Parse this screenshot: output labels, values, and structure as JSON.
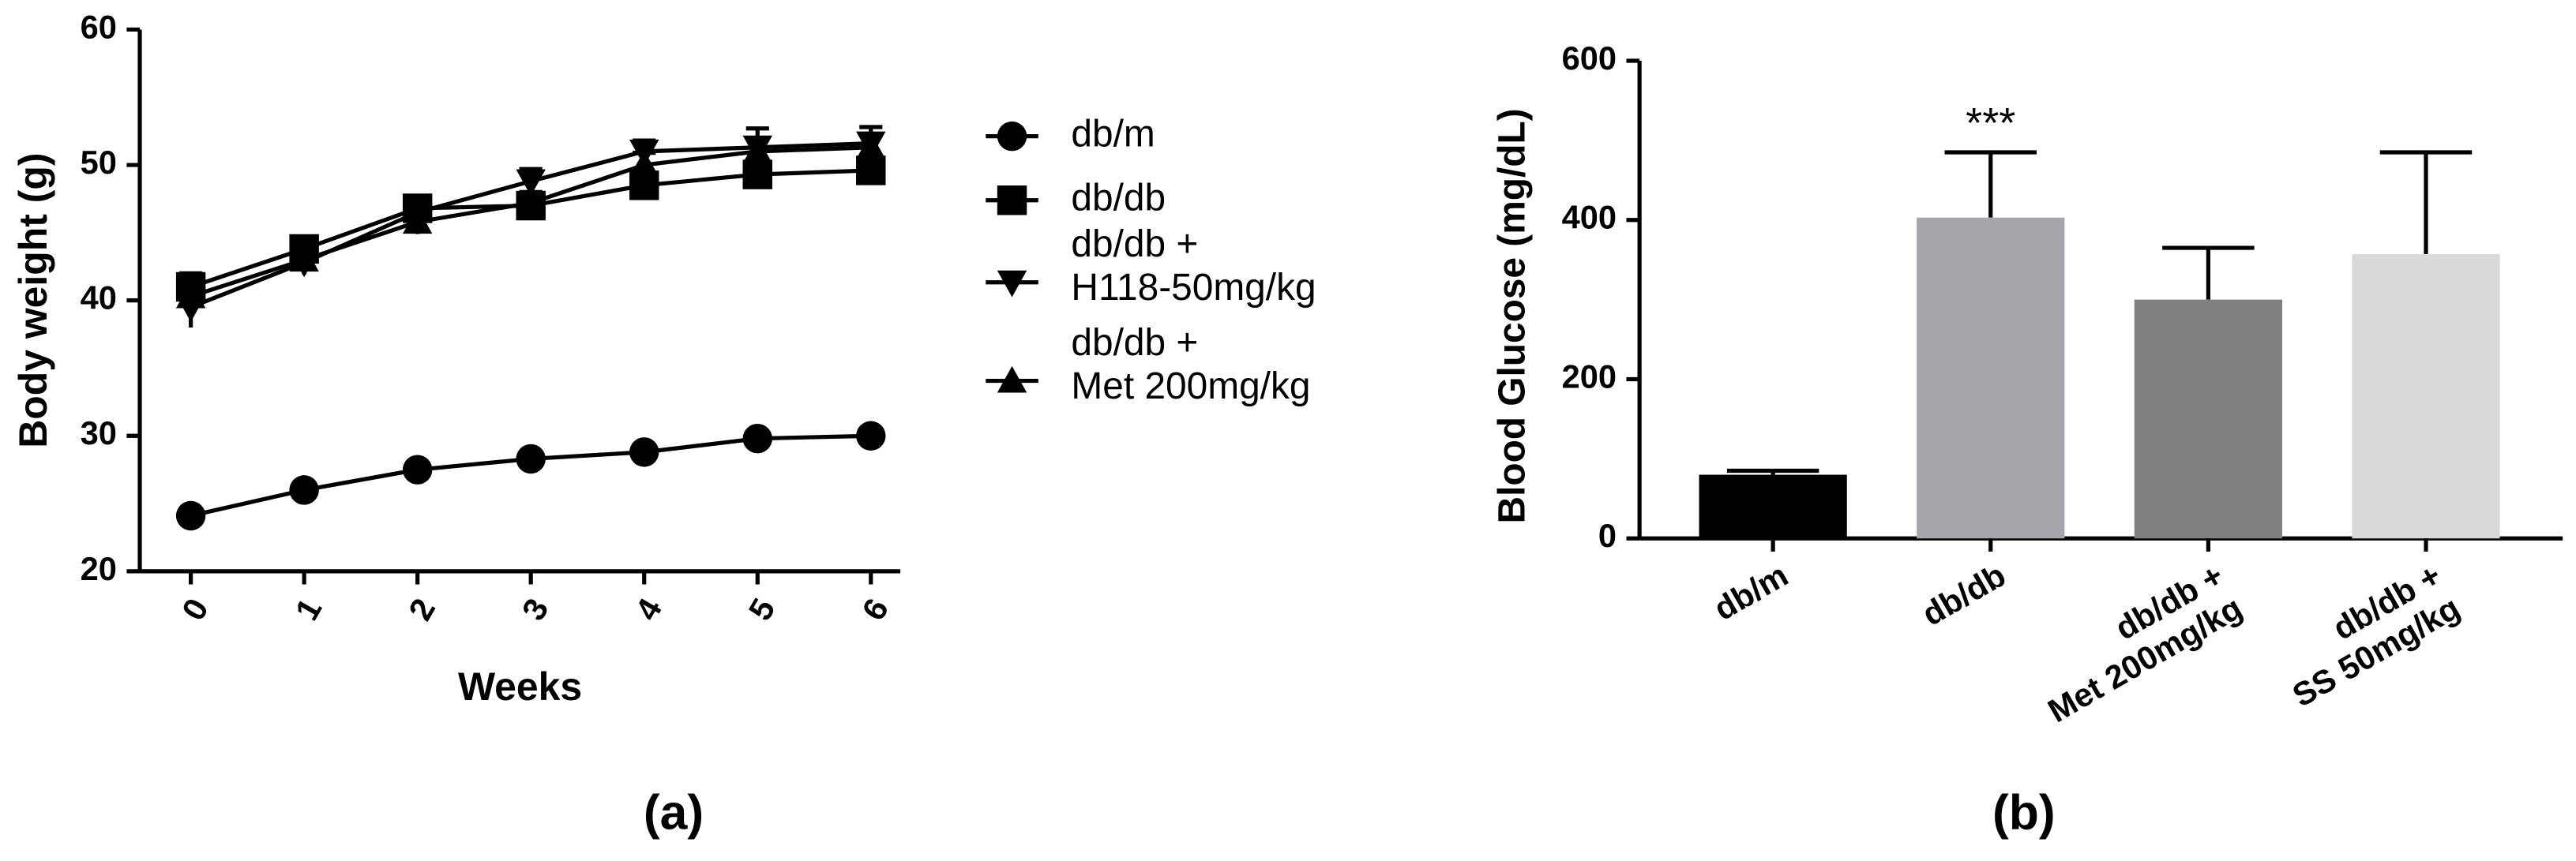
{
  "charts": [
    {
      "type": "line",
      "label": "(a)",
      "xlabel": "Weeks",
      "ylabel": "Body weight  (g)",
      "x": [
        0,
        1,
        2,
        3,
        4,
        5,
        6
      ],
      "xlim": [
        -0.45,
        6.26
      ],
      "xticks": [
        0,
        1,
        2,
        3,
        4,
        5,
        6
      ],
      "ylim": [
        20,
        60
      ],
      "yticks": [
        20,
        30,
        40,
        50,
        60
      ],
      "series": [
        {
          "name": "db/m",
          "marker": "circle",
          "color": "#000000",
          "values": [
            24.1,
            26.0,
            27.5,
            28.3,
            28.8,
            29.8,
            30.0
          ],
          "errors": [
            0.4,
            0.4,
            0.5,
            0.5,
            0.5,
            0.5,
            0.5
          ]
        },
        {
          "name": "db/db",
          "marker": "square",
          "color": "#000000",
          "values": [
            41.0,
            43.8,
            46.8,
            47.0,
            48.5,
            49.3,
            49.6
          ],
          "errors": [
            1.0,
            0.8,
            0.8,
            0.8,
            0.9,
            0.9,
            0.9
          ]
        },
        {
          "name": "db/db +\nH118-50mg/kg",
          "marker": "down",
          "color": "#000000",
          "values": [
            39.5,
            42.8,
            46.5,
            48.8,
            51.0,
            51.3,
            51.6
          ],
          "errors": [
            1.5,
            0.9,
            0.9,
            0.9,
            0.8,
            1.4,
            1.2
          ]
        },
        {
          "name": "db/db +\nMet 200mg/kg",
          "marker": "up",
          "color": "#000000",
          "values": [
            40.3,
            43.0,
            45.8,
            47.2,
            50.0,
            51.0,
            51.3
          ],
          "errors": [
            1.0,
            0.8,
            0.9,
            0.8,
            0.9,
            1.0,
            1.0
          ]
        }
      ]
    },
    {
      "type": "bar",
      "label": "(b)",
      "ylabel": "Blood Glucose (mg/dL)",
      "categories": [
        "db/m",
        "db/db",
        "db/db +\nMet 200mg/kg",
        "db/db +\nSS 50mg/kg"
      ],
      "values": [
        80,
        403,
        300,
        357
      ],
      "errors": [
        5,
        82,
        65,
        128
      ],
      "colors": [
        "#000000",
        "#a6a5aa",
        "#808080",
        "#d9d9d9"
      ],
      "annotations": [
        {
          "category": 1,
          "text": "***"
        }
      ],
      "ylim": [
        0,
        600
      ],
      "yticks": [
        0,
        200,
        400,
        600
      ]
    }
  ]
}
